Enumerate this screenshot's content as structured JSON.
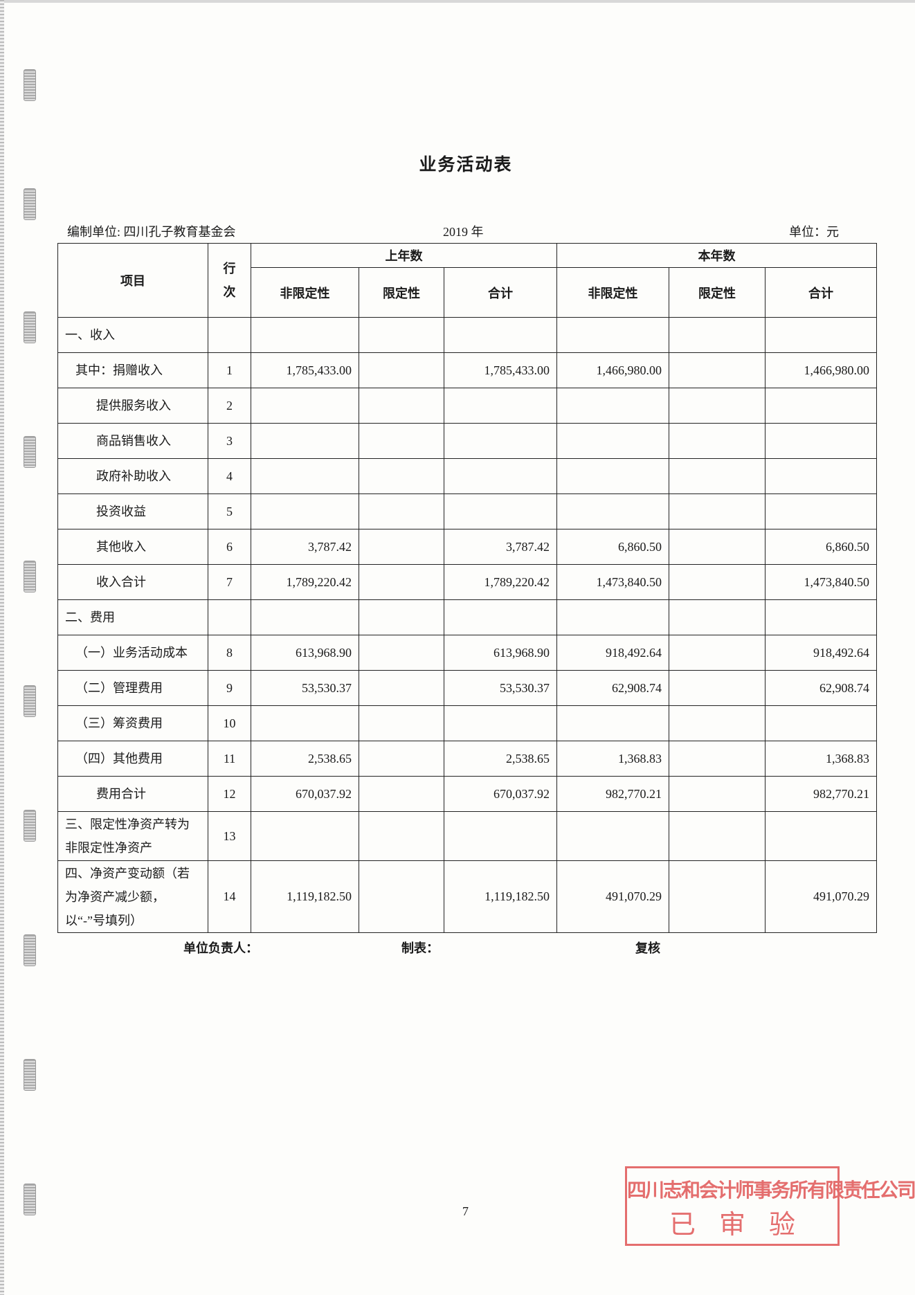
{
  "title": "业务活动表",
  "org_label": "编制单位: 四川孔子教育基金会",
  "year": "2019 年",
  "unit": "单位：元",
  "headers": {
    "item": "项目",
    "row_no": "行次",
    "prior_year": "上年数",
    "current_year": "本年数",
    "unrestricted": "非限定性",
    "restricted": "限定性",
    "total": "合计"
  },
  "rows": [
    {
      "label": "一、收入",
      "no": "",
      "values": [
        "",
        "",
        "",
        "",
        "",
        ""
      ]
    },
    {
      "label": "其中：捐赠收入",
      "no": "1",
      "values": [
        "1,785,433.00",
        "",
        "1,785,433.00",
        "1,466,980.00",
        "",
        "1,466,980.00"
      ]
    },
    {
      "label": "提供服务收入",
      "no": "2",
      "values": [
        "",
        "",
        "",
        "",
        "",
        ""
      ]
    },
    {
      "label": "商品销售收入",
      "no": "3",
      "values": [
        "",
        "",
        "",
        "",
        "",
        ""
      ]
    },
    {
      "label": "政府补助收入",
      "no": "4",
      "values": [
        "",
        "",
        "",
        "",
        "",
        ""
      ]
    },
    {
      "label": "投资收益",
      "no": "5",
      "values": [
        "",
        "",
        "",
        "",
        "",
        ""
      ]
    },
    {
      "label": "其他收入",
      "no": "6",
      "values": [
        "3,787.42",
        "",
        "3,787.42",
        "6,860.50",
        "",
        "6,860.50"
      ]
    },
    {
      "label": "收入合计",
      "no": "7",
      "values": [
        "1,789,220.42",
        "",
        "1,789,220.42",
        "1,473,840.50",
        "",
        "1,473,840.50"
      ]
    },
    {
      "label": "二、费用",
      "no": "",
      "values": [
        "",
        "",
        "",
        "",
        "",
        ""
      ]
    },
    {
      "label": "（一）业务活动成本",
      "no": "8",
      "values": [
        "613,968.90",
        "",
        "613,968.90",
        "918,492.64",
        "",
        "918,492.64"
      ]
    },
    {
      "label": "（二）管理费用",
      "no": "9",
      "values": [
        "53,530.37",
        "",
        "53,530.37",
        "62,908.74",
        "",
        "62,908.74"
      ]
    },
    {
      "label": "（三）筹资费用",
      "no": "10",
      "values": [
        "",
        "",
        "",
        "",
        "",
        ""
      ]
    },
    {
      "label": "（四）其他费用",
      "no": "11",
      "values": [
        "2,538.65",
        "",
        "2,538.65",
        "1,368.83",
        "",
        "1,368.83"
      ]
    },
    {
      "label": "费用合计",
      "no": "12",
      "values": [
        "670,037.92",
        "",
        "670,037.92",
        "982,770.21",
        "",
        "982,770.21"
      ]
    },
    {
      "label": "三、限定性净资产转为非限定性净资产",
      "no": "13",
      "values": [
        "",
        "",
        "",
        "",
        "",
        ""
      ]
    },
    {
      "label": "四、净资产变动额（若为净资产减少额，以“-”号填列）",
      "no": "14",
      "values": [
        "1,119,182.50",
        "",
        "1,119,182.50",
        "491,070.29",
        "",
        "491,070.29"
      ]
    }
  ],
  "footer": {
    "head": "单位负责人：",
    "preparer": "制表：",
    "reviewer": "复核"
  },
  "page_number": "7",
  "stamp": {
    "firm": "四川志和会计师事务所有限责任公司",
    "status": "已审验",
    "color": "#e46e6e"
  }
}
